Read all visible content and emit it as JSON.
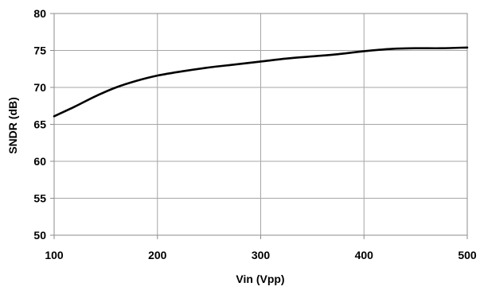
{
  "chart_data": {
    "type": "line",
    "xlabel": "Vin (Vpp)",
    "ylabel": "SNDR (dB)",
    "xlim": [
      100,
      500
    ],
    "ylim": [
      50,
      80
    ],
    "x_ticks": [
      100,
      200,
      300,
      400,
      500
    ],
    "y_ticks": [
      50,
      55,
      60,
      65,
      70,
      75,
      80
    ],
    "x_tick_labels": [
      "100",
      "200",
      "300",
      "400",
      "500"
    ],
    "y_tick_labels": [
      "50",
      "55",
      "60",
      "65",
      "70",
      "75",
      "80"
    ],
    "grid": true,
    "legend": "none",
    "series": [
      {
        "color": "#000000",
        "x": [
          100,
          120,
          140,
          160,
          180,
          200,
          225,
          250,
          275,
          300,
          325,
          350,
          375,
          400,
          425,
          450,
          475,
          500
        ],
        "y": [
          66.1,
          67.4,
          68.8,
          70.0,
          70.9,
          71.6,
          72.2,
          72.7,
          73.1,
          73.5,
          73.9,
          74.2,
          74.5,
          74.9,
          75.2,
          75.3,
          75.3,
          75.4
        ]
      }
    ]
  }
}
